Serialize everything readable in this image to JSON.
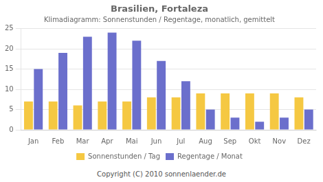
{
  "chart_data": {
    "type": "bar",
    "title": "Brasilien, Fortaleza",
    "subtitle": "Klimadiagramm: Sonnenstunden / Regentage, monatlich, gemittelt",
    "categories": [
      "Jan",
      "Feb",
      "Mar",
      "Apr",
      "Mai",
      "Jun",
      "Jul",
      "Aug",
      "Sep",
      "Okt",
      "Nov",
      "Dez"
    ],
    "series": [
      {
        "name": "Sonnenstunden / Tag",
        "color": "#F5C842",
        "values": [
          7,
          7,
          6,
          7,
          7,
          8,
          8,
          9,
          9,
          9,
          9,
          8
        ]
      },
      {
        "name": "Regentage / Monat",
        "color": "#6B6FCC",
        "values": [
          15,
          19,
          23,
          24,
          22,
          17,
          12,
          5,
          3,
          2,
          3,
          5
        ]
      }
    ],
    "ylim": [
      0,
      25
    ],
    "yticks": [
      0,
      5,
      10,
      15,
      20,
      25
    ],
    "grid": true,
    "legend": "bottom",
    "annotations": [
      "Copyright (C) 2010 sonnenlaender.de"
    ]
  }
}
